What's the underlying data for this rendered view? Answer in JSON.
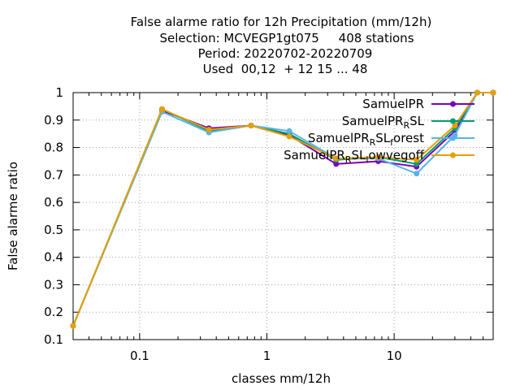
{
  "chart_data": {
    "type": "line",
    "title_lines": [
      "False alarme ratio  for 12h Precipitation (mm/12h)",
      "Selection: MCVEGP1gt075     408 stations",
      "Period: 20220702-20220709",
      "Used  00,12  + 12 15 ... 48"
    ],
    "xlabel": "classes mm/12h",
    "ylabel": "False alarme ratio",
    "x_scale": "log",
    "xlim": [
      0.03,
      60
    ],
    "ylim": [
      0.1,
      1.0
    ],
    "x_ticks": [
      {
        "v": 0.1,
        "label": "0.1"
      },
      {
        "v": 1,
        "label": "1"
      },
      {
        "v": 10,
        "label": "10"
      }
    ],
    "y_ticks": [
      {
        "v": 0.1,
        "label": "0.1"
      },
      {
        "v": 0.2,
        "label": "0.2"
      },
      {
        "v": 0.3,
        "label": "0.3"
      },
      {
        "v": 0.4,
        "label": "0.4"
      },
      {
        "v": 0.5,
        "label": "0.5"
      },
      {
        "v": 0.6,
        "label": "0.6"
      },
      {
        "v": 0.7,
        "label": "0.7"
      },
      {
        "v": 0.8,
        "label": "0.8"
      },
      {
        "v": 0.9,
        "label": "0.9"
      },
      {
        "v": 1.0,
        "label": "1"
      }
    ],
    "grid": true,
    "legend_position": "top-right",
    "series": [
      {
        "name_main": "SamuelPR",
        "name_sub": "",
        "name_tail": "",
        "color": "#7b00b8",
        "x": [
          0.03,
          0.15,
          0.35,
          0.75,
          1.5,
          3.5,
          7.5,
          15,
          30,
          45,
          60
        ],
        "y": [
          0.15,
          0.935,
          0.87,
          0.88,
          0.845,
          0.74,
          0.75,
          0.73,
          0.86,
          1.0,
          1.0
        ]
      },
      {
        "name_main": "SamuelPR",
        "name_sub": "R",
        "name_tail": "SL",
        "color": "#009e73",
        "x": [
          0.03,
          0.15,
          0.35,
          0.75,
          1.5,
          3.5,
          7.5,
          15,
          30,
          45,
          60
        ],
        "y": [
          0.15,
          0.94,
          0.86,
          0.88,
          0.85,
          0.755,
          0.765,
          0.74,
          0.87,
          1.0,
          1.0
        ]
      },
      {
        "name_main": "SamuelPR",
        "name_sub": "R",
        "name_tail": "SL",
        "name_sub2": "f",
        "name_tail2": "orest",
        "color": "#56b4e9",
        "x": [
          0.03,
          0.15,
          0.35,
          0.75,
          1.5,
          3.5,
          7.5,
          15,
          30,
          45,
          60
        ],
        "y": [
          0.15,
          0.93,
          0.855,
          0.88,
          0.86,
          0.76,
          0.76,
          0.705,
          0.845,
          1.0,
          1.0
        ]
      },
      {
        "name_main": "SamuelPR",
        "name_sub": "R",
        "name_tail": "SL",
        "name_sub2": "l",
        "name_tail2": "owvegoff",
        "color": "#e69f00",
        "x": [
          0.03,
          0.15,
          0.35,
          0.75,
          1.5,
          3.5,
          7.5,
          15,
          30,
          45,
          60
        ],
        "y": [
          0.15,
          0.94,
          0.865,
          0.88,
          0.84,
          0.76,
          0.765,
          0.755,
          0.88,
          1.0,
          1.0
        ]
      }
    ]
  }
}
